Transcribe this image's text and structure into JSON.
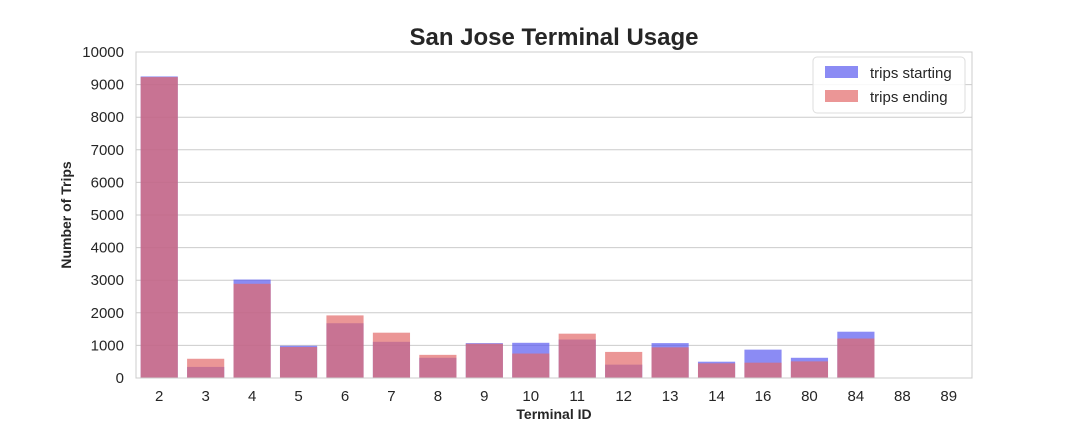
{
  "chart_data": {
    "type": "bar",
    "title": "San Jose Terminal Usage",
    "xlabel": "Terminal ID",
    "ylabel": "Number of Trips",
    "categories": [
      "2",
      "3",
      "4",
      "5",
      "6",
      "7",
      "8",
      "9",
      "10",
      "11",
      "12",
      "13",
      "14",
      "16",
      "80",
      "84",
      "88",
      "89"
    ],
    "ylim": [
      0,
      10000
    ],
    "yticks": [
      0,
      1000,
      2000,
      3000,
      4000,
      5000,
      6000,
      7000,
      8000,
      9000,
      10000
    ],
    "grid": true,
    "legend_position": "top-right",
    "series": [
      {
        "name": "trips starting",
        "color": "#5a5af0",
        "values": [
          9250,
          340,
          3020,
          990,
          1680,
          1110,
          620,
          1070,
          1080,
          1180,
          410,
          1070,
          500,
          870,
          620,
          1420,
          0,
          0
        ]
      },
      {
        "name": "trips ending",
        "color": "#e36a6a",
        "values": [
          9230,
          590,
          2890,
          950,
          1920,
          1390,
          710,
          1050,
          750,
          1360,
          800,
          940,
          450,
          470,
          510,
          1210,
          0,
          0
        ]
      }
    ]
  }
}
